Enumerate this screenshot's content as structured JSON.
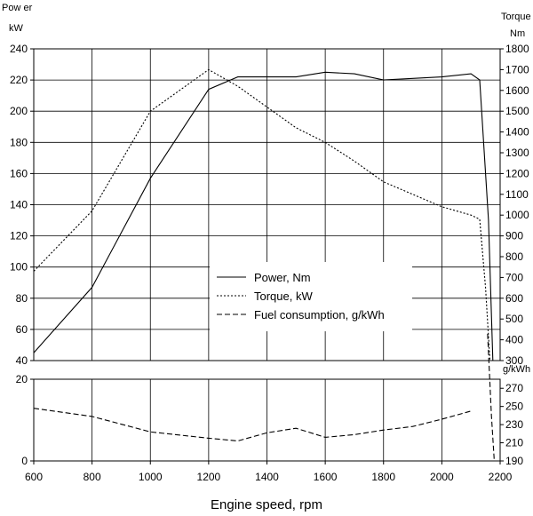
{
  "chart_data": {
    "type": "line",
    "xlabel": "Engine speed, rpm",
    "x_ticks": [
      600,
      800,
      1000,
      1200,
      1400,
      1600,
      1800,
      2000,
      2200
    ],
    "xlim": [
      600,
      2200
    ],
    "upper_panel": {
      "left_axis": {
        "label_line1": "Pow er",
        "label_line2": "kW",
        "range": [
          40,
          240
        ],
        "ticks": [
          40,
          60,
          80,
          100,
          120,
          140,
          160,
          180,
          200,
          220,
          240
        ]
      },
      "right_axis": {
        "label_line1": "Torque",
        "label_line2": "Nm",
        "range": [
          300,
          1800
        ],
        "ticks": [
          300,
          400,
          500,
          600,
          700,
          800,
          900,
          1000,
          1100,
          1200,
          1300,
          1400,
          1500,
          1600,
          1700,
          1800
        ]
      }
    },
    "lower_panel": {
      "left_axis": {
        "range": [
          0,
          20
        ],
        "ticks": [
          0,
          20
        ]
      },
      "right_axis": {
        "label": "g/kWh",
        "range": [
          190,
          280
        ],
        "ticks": [
          190,
          210,
          230,
          250,
          270
        ]
      }
    },
    "legend": {
      "placement": "center",
      "items": [
        "Power, Nm",
        "Torque, kW",
        "Fuel consumption, g/kWh"
      ]
    },
    "series": [
      {
        "name": "Power, Nm",
        "style": "solid",
        "axis": "left",
        "x": [
          600,
          800,
          1000,
          1200,
          1300,
          1400,
          1500,
          1600,
          1700,
          1800,
          1900,
          2000,
          2100,
          2130,
          2160,
          2175
        ],
        "values": [
          45,
          87,
          157,
          214,
          222,
          222,
          222,
          225,
          224,
          220,
          221,
          222,
          224,
          220,
          130,
          40
        ]
      },
      {
        "name": "Torque, kW",
        "style": "dotted",
        "axis": "right",
        "x": [
          600,
          800,
          1000,
          1200,
          1300,
          1400,
          1500,
          1600,
          1700,
          1800,
          1900,
          2000,
          2100,
          2130,
          2150,
          2165
        ],
        "values": [
          730,
          1020,
          1500,
          1700,
          1620,
          1520,
          1420,
          1350,
          1260,
          1160,
          1100,
          1040,
          1000,
          980,
          650,
          300
        ]
      },
      {
        "name": "Fuel consumption, g/kWh",
        "style": "dashed",
        "axis": "lower-right",
        "x": [
          600,
          800,
          1000,
          1200,
          1300,
          1400,
          1500,
          1600,
          1700,
          1800,
          1900,
          2000,
          2100
        ],
        "values": [
          248,
          239,
          222,
          215,
          212,
          221,
          226,
          216,
          219,
          224,
          228,
          236,
          245
        ]
      },
      {
        "name": "Fuel consumption, g/kWh",
        "style": "dashed",
        "axis": "lower-right",
        "x": [
          2157,
          2170,
          2180
        ],
        "values": [
          330,
          240,
          190
        ]
      }
    ],
    "grid": true
  },
  "colors": {
    "line": "#000000",
    "grid": "#000000",
    "background": "#ffffff"
  }
}
